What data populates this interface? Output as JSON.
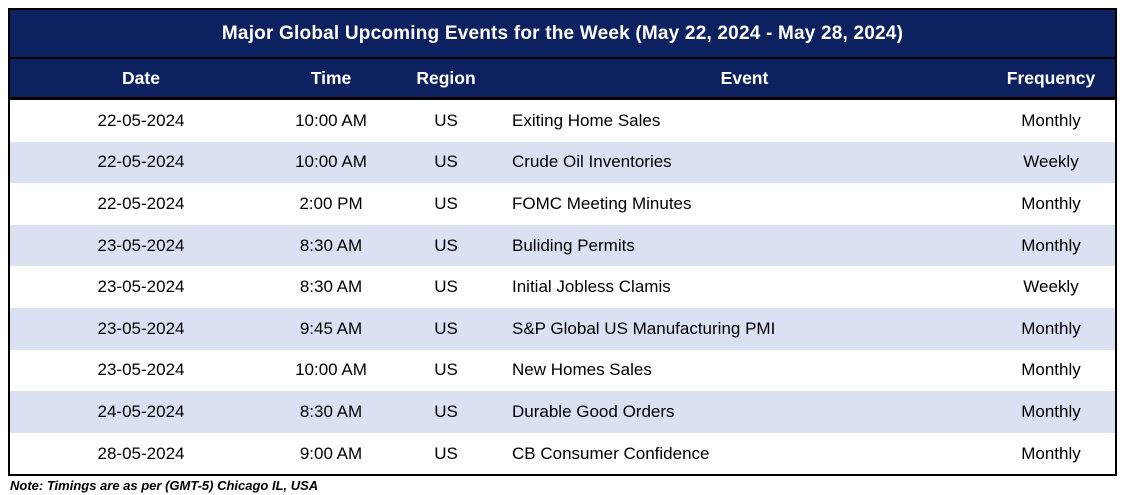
{
  "title": "Major Global Upcoming Events for the Week (May 22, 2024 - May 28, 2024)",
  "columns": [
    "Date",
    "Time",
    "Region",
    "Event",
    "Frequency"
  ],
  "rows": [
    {
      "date": "22-05-2024",
      "time": "10:00 AM",
      "region": "US",
      "event": "Exiting Home Sales",
      "frequency": "Monthly"
    },
    {
      "date": "22-05-2024",
      "time": "10:00 AM",
      "region": "US",
      "event": "Crude Oil Inventories",
      "frequency": "Weekly"
    },
    {
      "date": "22-05-2024",
      "time": "2:00 PM",
      "region": "US",
      "event": "FOMC Meeting Minutes",
      "frequency": "Monthly"
    },
    {
      "date": "23-05-2024",
      "time": "8:30 AM",
      "region": "US",
      "event": "Buliding Permits",
      "frequency": "Monthly"
    },
    {
      "date": "23-05-2024",
      "time": "8:30 AM",
      "region": "US",
      "event": "Initial Jobless Clamis",
      "frequency": "Weekly"
    },
    {
      "date": "23-05-2024",
      "time": "9:45 AM",
      "region": "US",
      "event": "S&P Global US Manufacturing PMI",
      "frequency": "Monthly"
    },
    {
      "date": "23-05-2024",
      "time": "10:00 AM",
      "region": "US",
      "event": "New Homes Sales",
      "frequency": "Monthly"
    },
    {
      "date": "24-05-2024",
      "time": "8:30 AM",
      "region": "US",
      "event": "Durable Good Orders",
      "frequency": "Monthly"
    },
    {
      "date": "28-05-2024",
      "time": "9:00 AM",
      "region": "US",
      "event": "CB Consumer Confidence",
      "frequency": "Monthly"
    }
  ],
  "note": "Note: Timings are as per (GMT-5) Chicago IL, USA",
  "colors": {
    "header_bg": "#0D2161",
    "band_row_bg": "#D9E1F2",
    "plain_row_bg": "#FFFFFF",
    "header_text": "#FFFFFF",
    "body_text": "#000000",
    "border": "#000000"
  }
}
